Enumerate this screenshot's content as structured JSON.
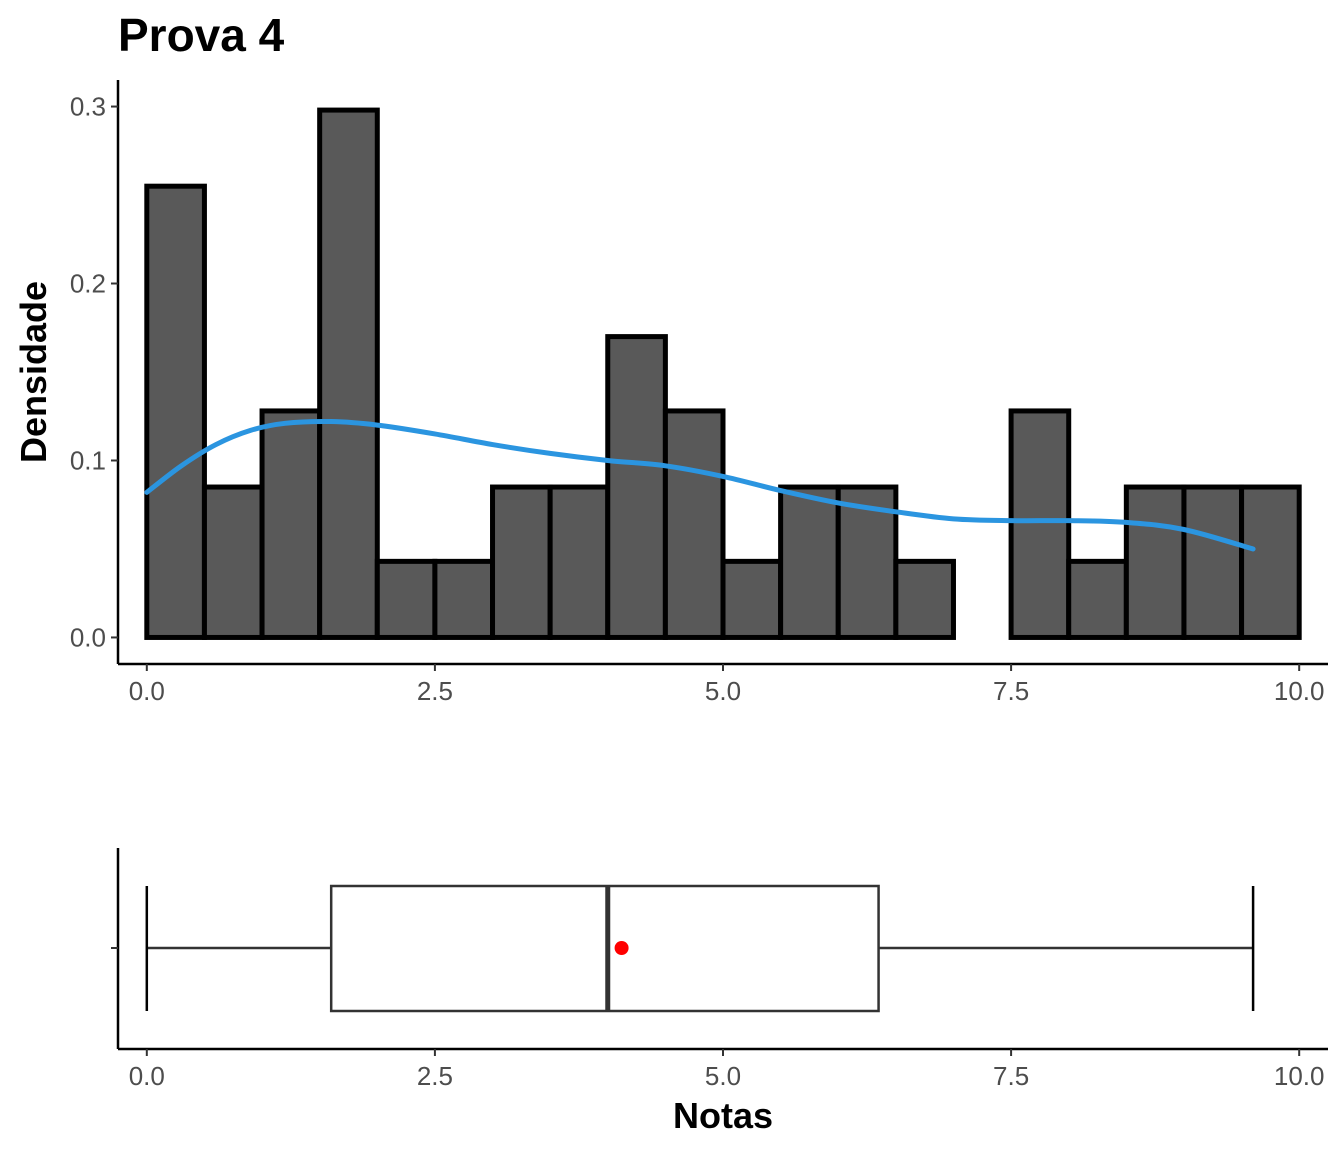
{
  "chart_data": [
    {
      "type": "bar",
      "title": "Prova 4",
      "xlabel": "",
      "ylabel": "Densidade",
      "xlim": [
        -0.25,
        10.25
      ],
      "ylim": [
        -0.015,
        0.315
      ],
      "x_ticks": [
        "0.0",
        "2.5",
        "5.0",
        "7.5",
        "10.0"
      ],
      "x_tick_values": [
        0,
        2.5,
        5,
        7.5,
        10
      ],
      "y_ticks": [
        "0.0",
        "0.1",
        "0.2",
        "0.3"
      ],
      "y_tick_values": [
        0,
        0.1,
        0.2,
        0.3
      ],
      "bin_width": 0.5,
      "bin_starts": [
        0,
        0.5,
        1,
        1.5,
        2,
        2.5,
        3,
        3.5,
        4,
        4.5,
        5,
        5.5,
        6,
        6.5,
        7,
        7.5,
        8,
        8.5,
        9,
        9.5
      ],
      "values": [
        0.255,
        0.085,
        0.128,
        0.298,
        0.043,
        0.043,
        0.085,
        0.085,
        0.17,
        0.128,
        0.043,
        0.085,
        0.085,
        0.043,
        0.0,
        0.128,
        0.043,
        0.085,
        0.085,
        0.085
      ],
      "bar_color": "#595959",
      "bar_edge_color": "#000000",
      "density_curve": {
        "color": "#2b95e0",
        "x": [
          0.0,
          0.3,
          0.6,
          0.9,
          1.2,
          1.6,
          2.0,
          2.5,
          3.0,
          3.5,
          4.0,
          4.5,
          5.0,
          5.5,
          6.0,
          6.5,
          7.0,
          7.5,
          8.0,
          8.5,
          9.0,
          9.6
        ],
        "y": [
          0.082,
          0.097,
          0.109,
          0.117,
          0.121,
          0.122,
          0.12,
          0.115,
          0.109,
          0.104,
          0.1,
          0.097,
          0.091,
          0.083,
          0.076,
          0.071,
          0.067,
          0.066,
          0.066,
          0.065,
          0.061,
          0.05
        ]
      },
      "grid": false
    },
    {
      "type": "box",
      "xlabel": "Notas",
      "xlim": [
        -0.25,
        10.25
      ],
      "x_ticks": [
        "0.0",
        "2.5",
        "5.0",
        "7.5",
        "10.0"
      ],
      "x_tick_values": [
        0,
        2.5,
        5,
        7.5,
        10
      ],
      "min": 0.0,
      "q1": 1.6,
      "median": 4.0,
      "q3": 6.35,
      "max": 9.6,
      "mean": 4.12,
      "mean_color": "#ff0000",
      "box_color": "#333333",
      "grid": false
    }
  ]
}
